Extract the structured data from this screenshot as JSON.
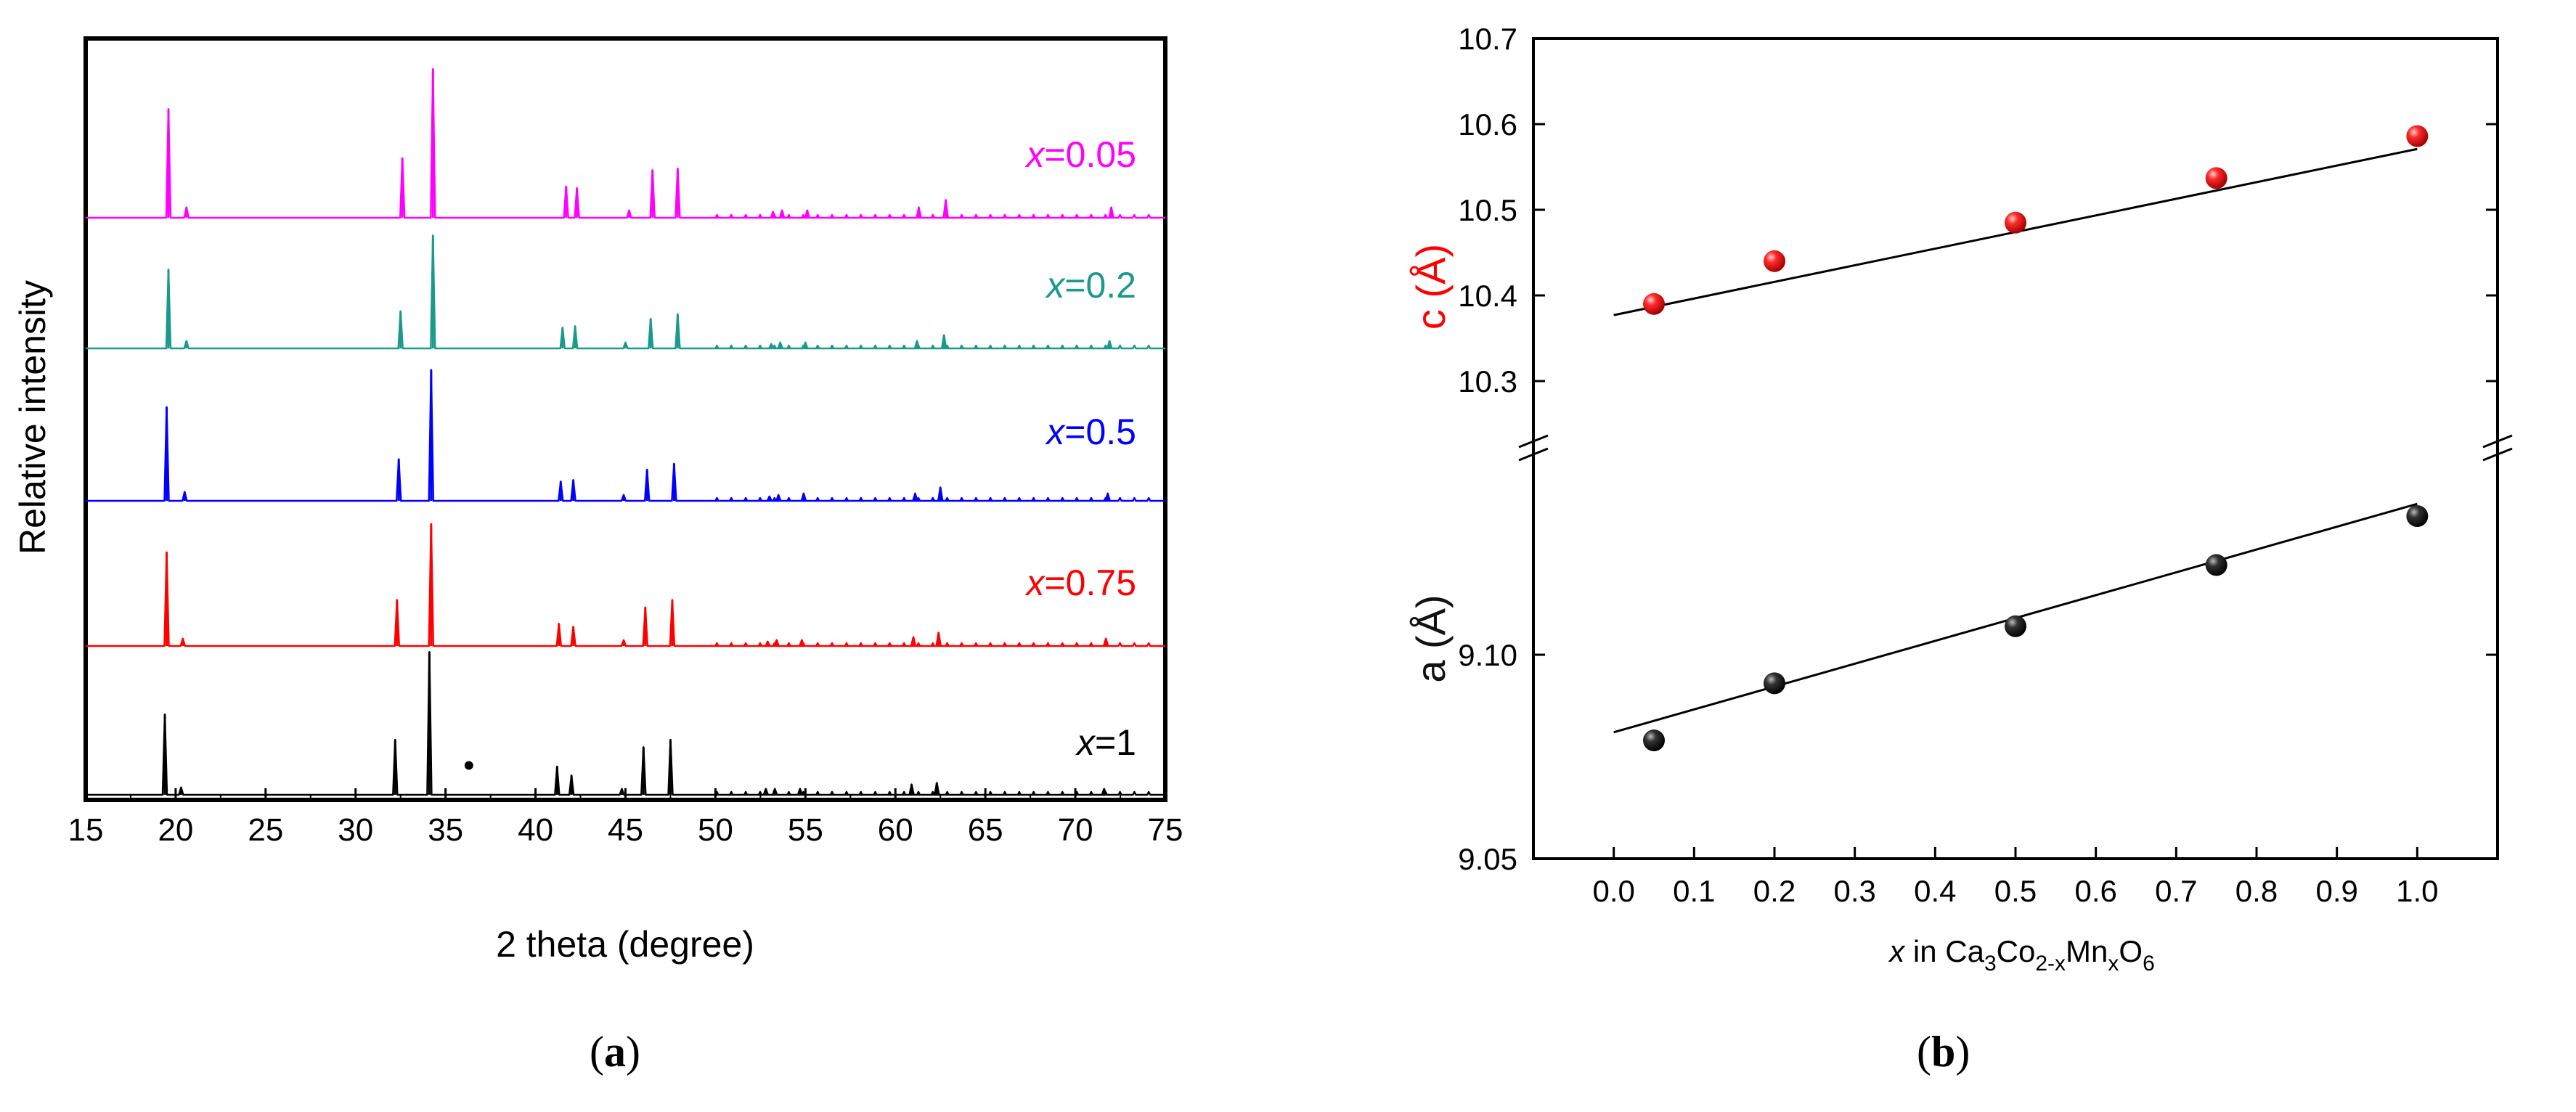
{
  "chart_data": [
    {
      "type": "line",
      "panel": "a",
      "caption": {
        "open": "(",
        "letter": "a",
        "close": ")"
      },
      "xlabel": "2 theta (degree)",
      "ylabel": "Relative intensity",
      "xlim": [
        15,
        75
      ],
      "xticks": [
        15,
        20,
        25,
        30,
        35,
        40,
        45,
        50,
        55,
        60,
        65,
        70,
        75
      ],
      "impurity_marker": {
        "symbol": "•",
        "x": 36.3,
        "series": "x=1"
      },
      "series": [
        {
          "name": "x=0.05",
          "label_var": "x",
          "label_value": "=0.05",
          "color": "#ff00ff",
          "offset": 4,
          "peaks": [
            [
              19.6,
              0.73
            ],
            [
              20.6,
              0.07
            ],
            [
              32.6,
              0.4
            ],
            [
              34.3,
              1.0
            ],
            [
              41.7,
              0.21
            ],
            [
              42.3,
              0.2
            ],
            [
              45.2,
              0.05
            ],
            [
              46.5,
              0.32
            ],
            [
              47.9,
              0.33
            ],
            [
              53.2,
              0.04
            ],
            [
              53.7,
              0.05
            ],
            [
              55.1,
              0.05
            ],
            [
              61.3,
              0.07
            ],
            [
              62.8,
              0.12
            ],
            [
              72.0,
              0.07
            ]
          ]
        },
        {
          "name": "x=0.2",
          "label_var": "x",
          "label_value": "=0.2",
          "color": "#1a9a8c",
          "offset": 3,
          "peaks": [
            [
              19.6,
              0.53
            ],
            [
              20.6,
              0.05
            ],
            [
              32.5,
              0.25
            ],
            [
              34.3,
              0.76
            ],
            [
              41.5,
              0.14
            ],
            [
              42.2,
              0.15
            ],
            [
              45.0,
              0.04
            ],
            [
              46.4,
              0.2
            ],
            [
              47.9,
              0.23
            ],
            [
              53.1,
              0.03
            ],
            [
              53.6,
              0.04
            ],
            [
              55.0,
              0.04
            ],
            [
              61.2,
              0.05
            ],
            [
              62.7,
              0.09
            ],
            [
              71.9,
              0.05
            ]
          ]
        },
        {
          "name": "x=0.5",
          "label_var": "x",
          "label_value": "=0.5",
          "color": "#0000ff",
          "offset": 2,
          "peaks": [
            [
              19.5,
              0.63
            ],
            [
              20.5,
              0.06
            ],
            [
              32.4,
              0.28
            ],
            [
              34.2,
              0.88
            ],
            [
              41.4,
              0.13
            ],
            [
              42.1,
              0.14
            ],
            [
              44.9,
              0.04
            ],
            [
              46.2,
              0.21
            ],
            [
              47.7,
              0.25
            ],
            [
              53.0,
              0.03
            ],
            [
              53.5,
              0.04
            ],
            [
              54.9,
              0.05
            ],
            [
              61.1,
              0.05
            ],
            [
              62.5,
              0.09
            ],
            [
              71.8,
              0.05
            ]
          ]
        },
        {
          "name": "x=0.75",
          "label_var": "x",
          "label_value": "=0.75",
          "color": "#ff0000",
          "offset": 1,
          "peaks": [
            [
              19.5,
              0.63
            ],
            [
              20.4,
              0.05
            ],
            [
              32.3,
              0.31
            ],
            [
              34.2,
              0.82
            ],
            [
              41.3,
              0.15
            ],
            [
              42.1,
              0.13
            ],
            [
              44.9,
              0.04
            ],
            [
              46.1,
              0.26
            ],
            [
              47.6,
              0.31
            ],
            [
              52.9,
              0.03
            ],
            [
              53.4,
              0.04
            ],
            [
              54.8,
              0.04
            ],
            [
              61.0,
              0.06
            ],
            [
              62.4,
              0.09
            ],
            [
              71.7,
              0.05
            ]
          ]
        },
        {
          "name": "x=1",
          "label_var": "x",
          "label_value": "=1",
          "color": "#000000",
          "offset": 0,
          "peaks": [
            [
              19.4,
              0.54
            ],
            [
              20.3,
              0.05
            ],
            [
              32.2,
              0.37
            ],
            [
              34.1,
              0.96
            ],
            [
              41.2,
              0.19
            ],
            [
              42.0,
              0.13
            ],
            [
              44.8,
              0.04
            ],
            [
              46.0,
              0.32
            ],
            [
              47.5,
              0.37
            ],
            [
              52.8,
              0.04
            ],
            [
              53.3,
              0.04
            ],
            [
              54.7,
              0.04
            ],
            [
              60.9,
              0.07
            ],
            [
              62.3,
              0.08
            ],
            [
              71.6,
              0.04
            ]
          ]
        }
      ]
    },
    {
      "type": "scatter",
      "panel": "b",
      "caption": {
        "open": "(",
        "letter": "b",
        "close": ")"
      },
      "xlabel": {
        "var": "x",
        "pre": " in Ca",
        "sub1": "3",
        "mid1": "Co",
        "sub2": "2-x",
        "mid2": "Mn",
        "sub3": "x",
        "mid3": "O",
        "sub4": "6"
      },
      "xlim": [
        -0.1,
        1.1
      ],
      "xticks": [
        "0.0",
        "0.1",
        "0.2",
        "0.3",
        "0.4",
        "0.5",
        "0.6",
        "0.7",
        "0.8",
        "0.9",
        "1.0"
      ],
      "top": {
        "ylabel": "c (Å)",
        "ylim": [
          10.2,
          10.7
        ],
        "yticks": [
          "10.3",
          "10.4",
          "10.5",
          "10.6",
          "10.7"
        ],
        "color": "#ff0000",
        "points": [
          [
            0.05,
            10.39
          ],
          [
            0.2,
            10.44
          ],
          [
            0.5,
            10.485
          ],
          [
            0.75,
            10.537
          ],
          [
            1.0,
            10.586
          ]
        ],
        "fit": [
          [
            0.0,
            10.377
          ],
          [
            1.0,
            10.571
          ]
        ]
      },
      "bottom": {
        "ylabel": "a (Å)",
        "ylim": [
          9.05,
          9.155
        ],
        "yticks": [
          "9.05",
          "9.10"
        ],
        "color": "#111111",
        "points": [
          [
            0.05,
            9.079
          ],
          [
            0.2,
            9.093
          ],
          [
            0.5,
            9.107
          ],
          [
            0.75,
            9.122
          ],
          [
            1.0,
            9.134
          ]
        ],
        "fit": [
          [
            0.0,
            9.081
          ],
          [
            1.0,
            9.137
          ]
        ]
      }
    }
  ]
}
